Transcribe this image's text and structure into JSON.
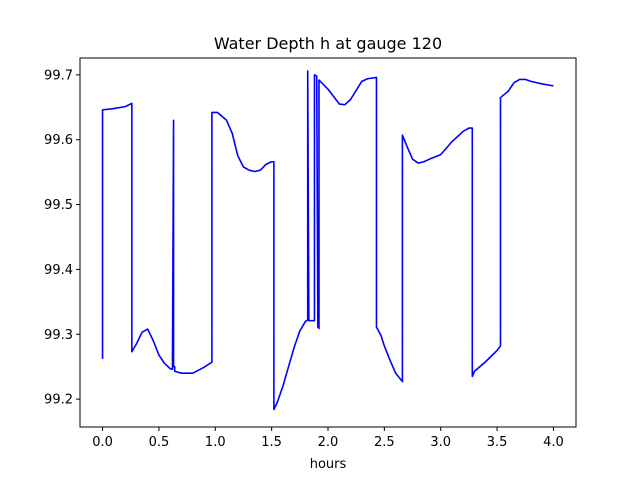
{
  "chart_data": {
    "type": "line",
    "title": "Water Depth h at gauge 120",
    "xlabel": "hours",
    "ylabel": "",
    "xlim": [
      -0.2,
      4.2
    ],
    "ylim": [
      99.157,
      99.726
    ],
    "xticks": [
      0.0,
      0.5,
      1.0,
      1.5,
      2.0,
      2.5,
      3.0,
      3.5,
      4.0
    ],
    "xtick_labels": [
      "0.0",
      "0.5",
      "1.0",
      "1.5",
      "2.0",
      "2.5",
      "3.0",
      "3.5",
      "4.0"
    ],
    "yticks": [
      99.2,
      99.3,
      99.4,
      99.5,
      99.6,
      99.7
    ],
    "ytick_labels": [
      "99.2",
      "99.3",
      "99.4",
      "99.5",
      "99.6",
      "99.7"
    ],
    "grid": false,
    "legend": "none",
    "series": [
      {
        "color": "#0000ff",
        "x": [
          0.0,
          0.0,
          0.1,
          0.2,
          0.26,
          0.26,
          0.3,
          0.35,
          0.4,
          0.45,
          0.5,
          0.55,
          0.6,
          0.62,
          0.63,
          0.63,
          0.64,
          0.64,
          0.7,
          0.8,
          0.9,
          0.97,
          0.97,
          1.02,
          1.1,
          1.15,
          1.2,
          1.25,
          1.3,
          1.35,
          1.4,
          1.45,
          1.5,
          1.52,
          1.52,
          1.55,
          1.6,
          1.65,
          1.7,
          1.75,
          1.8,
          1.82,
          1.82,
          1.83,
          1.83,
          1.88,
          1.88,
          1.9,
          1.91,
          1.91,
          1.92,
          1.92,
          2.0,
          2.1,
          2.15,
          2.2,
          2.3,
          2.35,
          2.43,
          2.43,
          2.47,
          2.5,
          2.55,
          2.6,
          2.66,
          2.66,
          2.7,
          2.75,
          2.8,
          2.85,
          2.9,
          3.0,
          3.05,
          3.1,
          3.15,
          3.2,
          3.25,
          3.28,
          3.28,
          3.3,
          3.4,
          3.5,
          3.53,
          3.53,
          3.6,
          3.65,
          3.7,
          3.75,
          3.8,
          3.9,
          4.0
        ],
        "y": [
          99.262,
          99.646,
          99.648,
          99.651,
          99.656,
          99.273,
          99.285,
          99.303,
          99.308,
          99.29,
          99.268,
          99.255,
          99.247,
          99.246,
          99.63,
          99.25,
          99.25,
          99.243,
          99.24,
          99.24,
          99.249,
          99.257,
          99.642,
          99.642,
          99.63,
          99.61,
          99.575,
          99.558,
          99.553,
          99.551,
          99.553,
          99.562,
          99.566,
          99.566,
          99.184,
          99.195,
          99.22,
          99.25,
          99.28,
          99.305,
          99.32,
          99.322,
          99.706,
          99.321,
          99.321,
          99.321,
          99.7,
          99.698,
          99.311,
          99.311,
          99.309,
          99.692,
          99.678,
          99.655,
          99.654,
          99.662,
          99.69,
          99.694,
          99.696,
          99.311,
          99.298,
          99.282,
          99.26,
          99.24,
          99.227,
          99.607,
          99.59,
          99.57,
          99.564,
          99.566,
          99.57,
          99.577,
          99.587,
          99.597,
          99.605,
          99.613,
          99.618,
          99.618,
          99.235,
          99.243,
          99.258,
          99.275,
          99.282,
          99.665,
          99.675,
          99.688,
          99.693,
          99.693,
          99.69,
          99.686,
          99.683
        ]
      }
    ]
  }
}
